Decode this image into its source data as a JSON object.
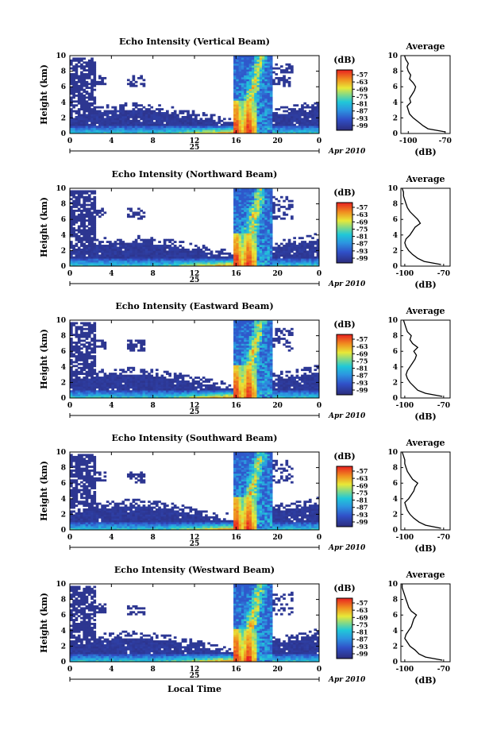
{
  "chart_data": [
    {
      "type": "heatmap",
      "title": "Echo Intensity (Vertical Beam)",
      "ylabel": "Height (km)",
      "xlabel": "",
      "x_ticks": [
        "0",
        "4",
        "8",
        "12",
        "16",
        "20",
        "0"
      ],
      "y_ticks": [
        "0",
        "2",
        "4",
        "6",
        "8",
        "10"
      ],
      "xlim": [
        0,
        24
      ],
      "ylim": [
        0,
        10
      ],
      "date_day": "25",
      "date_label": "Apr 2010",
      "colorbar": {
        "unit": "(dB)",
        "ticks": [
          "-57",
          "-63",
          "-69",
          "-75",
          "-81",
          "-87",
          "-93",
          "-99"
        ]
      },
      "profile": {
        "title": "Average",
        "xlabel": "(dB)",
        "x_ticks": [
          "-100",
          "-70"
        ],
        "y_ticks": [
          "0",
          "2",
          "4",
          "6",
          "8",
          "10"
        ],
        "xlim": [
          -106,
          -66
        ],
        "ylim": [
          0,
          10
        ],
        "heights": [
          0.2,
          0.6,
          1.0,
          1.5,
          2.0,
          2.5,
          3.0,
          3.5,
          4.0,
          4.5,
          5.0,
          5.5,
          6.0,
          6.5,
          7.0,
          7.5,
          8.0,
          8.5,
          9.0,
          9.5,
          10.0
        ],
        "values": [
          -70,
          -84,
          -88,
          -92,
          -96,
          -99,
          -100,
          -101,
          -98,
          -99,
          -97,
          -95,
          -94,
          -96,
          -99,
          -98,
          -100,
          -101,
          -100,
          -102,
          -103
        ]
      }
    },
    {
      "type": "heatmap",
      "title": "Echo Intensity (Northward Beam)",
      "ylabel": "Height (km)",
      "xlabel": "",
      "x_ticks": [
        "0",
        "4",
        "8",
        "12",
        "16",
        "20",
        "0"
      ],
      "y_ticks": [
        "0",
        "2",
        "4",
        "6",
        "8",
        "10"
      ],
      "xlim": [
        0,
        24
      ],
      "ylim": [
        0,
        10
      ],
      "date_day": "25",
      "date_label": "Apr 2010",
      "colorbar": {
        "unit": "(dB)",
        "ticks": [
          "-57",
          "-63",
          "-69",
          "-75",
          "-81",
          "-87",
          "-93",
          "-99"
        ]
      },
      "profile": {
        "title": "Average",
        "xlabel": "(dB)",
        "x_ticks": [
          "-100",
          "-70"
        ],
        "y_ticks": [
          "0",
          "2",
          "4",
          "6",
          "8",
          "10"
        ],
        "xlim": [
          -103,
          -65
        ],
        "ylim": [
          0,
          10
        ],
        "heights": [
          0.2,
          0.6,
          1.0,
          1.5,
          2.0,
          2.5,
          3.0,
          3.5,
          4.0,
          4.5,
          5.0,
          5.5,
          6.0,
          6.5,
          7.0,
          7.5,
          8.0,
          8.5,
          9.0,
          9.5,
          10.0
        ],
        "values": [
          -72,
          -85,
          -90,
          -94,
          -97,
          -99,
          -100,
          -99,
          -96,
          -94,
          -92,
          -88,
          -90,
          -93,
          -96,
          -98,
          -99,
          -100,
          -101,
          -101,
          -102
        ]
      }
    },
    {
      "type": "heatmap",
      "title": "Echo Intensity (Eastward Beam)",
      "ylabel": "Height (km)",
      "xlabel": "",
      "x_ticks": [
        "0",
        "4",
        "8",
        "12",
        "16",
        "20",
        "0"
      ],
      "y_ticks": [
        "0",
        "2",
        "4",
        "6",
        "8",
        "10"
      ],
      "xlim": [
        0,
        24
      ],
      "ylim": [
        0,
        10
      ],
      "date_day": "25",
      "date_label": "Apr 2010",
      "colorbar": {
        "unit": "(dB)",
        "ticks": [
          "-57",
          "-63",
          "-69",
          "-75",
          "-81",
          "-87",
          "-93",
          "-99"
        ]
      },
      "profile": {
        "title": "Average",
        "xlabel": "(dB)",
        "x_ticks": [
          "-100",
          "-70"
        ],
        "y_ticks": [
          "0",
          "2",
          "4",
          "6",
          "8",
          "10"
        ],
        "xlim": [
          -103,
          -65
        ],
        "ylim": [
          0,
          10
        ],
        "heights": [
          0.2,
          0.6,
          1.0,
          1.5,
          2.0,
          2.5,
          3.0,
          3.5,
          4.0,
          4.5,
          5.0,
          5.5,
          6.0,
          6.5,
          7.0,
          7.5,
          8.0,
          8.5,
          9.0,
          9.5,
          10.0
        ],
        "values": [
          -71,
          -84,
          -90,
          -93,
          -96,
          -98,
          -99,
          -98,
          -96,
          -94,
          -92,
          -91,
          -93,
          -90,
          -94,
          -96,
          -95,
          -98,
          -99,
          -100,
          -101
        ]
      }
    },
    {
      "type": "heatmap",
      "title": "Echo Intensity (Southward Beam)",
      "ylabel": "Height (km)",
      "xlabel": "",
      "x_ticks": [
        "0",
        "4",
        "8",
        "12",
        "16",
        "20",
        "0"
      ],
      "y_ticks": [
        "0",
        "2",
        "4",
        "6",
        "8",
        "10"
      ],
      "xlim": [
        0,
        24
      ],
      "ylim": [
        0,
        10
      ],
      "date_day": "25",
      "date_label": "Apr 2010",
      "colorbar": {
        "unit": "(dB)",
        "ticks": [
          "-57",
          "-63",
          "-69",
          "-75",
          "-81",
          "-87",
          "-93",
          "-99"
        ]
      },
      "profile": {
        "title": "Average",
        "xlabel": "(dB)",
        "x_ticks": [
          "-100",
          "-70"
        ],
        "y_ticks": [
          "0",
          "2",
          "4",
          "6",
          "8",
          "10"
        ],
        "xlim": [
          -103,
          -65
        ],
        "ylim": [
          0,
          10
        ],
        "heights": [
          0.2,
          0.6,
          1.0,
          1.5,
          2.0,
          2.5,
          3.0,
          3.5,
          4.0,
          4.5,
          5.0,
          5.5,
          6.0,
          6.5,
          7.0,
          7.5,
          8.0,
          8.5,
          9.0,
          9.5,
          10.0
        ],
        "values": [
          -72,
          -84,
          -89,
          -93,
          -96,
          -98,
          -99,
          -100,
          -97,
          -95,
          -93,
          -92,
          -90,
          -94,
          -96,
          -98,
          -99,
          -100,
          -100,
          -101,
          -102
        ]
      }
    },
    {
      "type": "heatmap",
      "title": "Echo Intensity (Westward Beam)",
      "ylabel": "Height (km)",
      "xlabel": "Local Time",
      "x_ticks": [
        "0",
        "4",
        "8",
        "12",
        "16",
        "20",
        "0"
      ],
      "y_ticks": [
        "0",
        "2",
        "4",
        "6",
        "8",
        "10"
      ],
      "xlim": [
        0,
        24
      ],
      "ylim": [
        0,
        10
      ],
      "date_day": "25",
      "date_label": "Apr 2010",
      "colorbar": {
        "unit": "(dB)",
        "ticks": [
          "-57",
          "-63",
          "-69",
          "-75",
          "-81",
          "-87",
          "-93",
          "-99"
        ]
      },
      "profile": {
        "title": "Average",
        "xlabel": "(dB)",
        "x_ticks": [
          "-100",
          "-70"
        ],
        "y_ticks": [
          "0",
          "2",
          "4",
          "6",
          "8",
          "10"
        ],
        "xlim": [
          -103,
          -65
        ],
        "ylim": [
          0,
          10
        ],
        "heights": [
          0.2,
          0.6,
          1.0,
          1.5,
          2.0,
          2.5,
          3.0,
          3.5,
          4.0,
          4.5,
          5.0,
          5.5,
          6.0,
          6.5,
          7.0,
          7.5,
          8.0,
          8.5,
          9.0,
          9.5,
          10.0
        ],
        "values": [
          -71,
          -84,
          -89,
          -92,
          -96,
          -98,
          -100,
          -99,
          -97,
          -95,
          -94,
          -93,
          -91,
          -95,
          -97,
          -98,
          -99,
          -100,
          -101,
          -102,
          -102
        ]
      }
    }
  ]
}
